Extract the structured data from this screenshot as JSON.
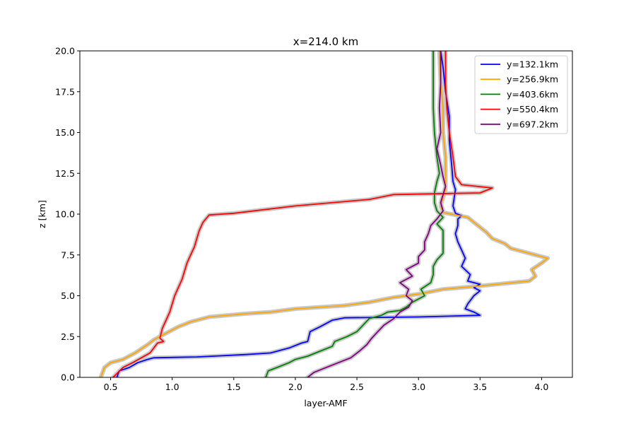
{
  "chart_data": {
    "type": "line",
    "title": "x=214.0 km",
    "xlabel": "layer-AMF",
    "ylabel": "z [km]",
    "xlim": [
      0.25,
      4.25
    ],
    "ylim": [
      0,
      20
    ],
    "xticks": [
      "0.5",
      "1.0",
      "1.5",
      "2.0",
      "2.5",
      "3.0",
      "3.5",
      "4.0"
    ],
    "yticks": [
      "0.0",
      "2.5",
      "5.0",
      "7.5",
      "10.0",
      "12.5",
      "15.0",
      "17.5",
      "20.0"
    ],
    "grid": false,
    "legend_position": "top-right",
    "band_color": "#c8c8c8",
    "series": [
      {
        "name": "y=132.1km",
        "color": "#0000ff",
        "points": [
          [
            0.55,
            0
          ],
          [
            0.57,
            0.4
          ],
          [
            0.65,
            0.6
          ],
          [
            0.72,
            0.9
          ],
          [
            0.8,
            1.1
          ],
          [
            0.85,
            1.2
          ],
          [
            1.2,
            1.25
          ],
          [
            1.6,
            1.4
          ],
          [
            1.8,
            1.5
          ],
          [
            1.95,
            1.8
          ],
          [
            2.05,
            2.1
          ],
          [
            2.1,
            2.2
          ],
          [
            2.12,
            2.8
          ],
          [
            2.2,
            3.1
          ],
          [
            2.25,
            3.3
          ],
          [
            2.3,
            3.5
          ],
          [
            2.4,
            3.65
          ],
          [
            3.0,
            3.7
          ],
          [
            3.5,
            3.8
          ],
          [
            3.45,
            4.0
          ],
          [
            3.38,
            4.2
          ],
          [
            3.4,
            4.5
          ],
          [
            3.45,
            5.0
          ],
          [
            3.5,
            5.3
          ],
          [
            3.45,
            5.5
          ],
          [
            3.5,
            5.7
          ],
          [
            3.4,
            5.9
          ],
          [
            3.42,
            6.3
          ],
          [
            3.35,
            6.8
          ],
          [
            3.38,
            7.3
          ],
          [
            3.35,
            7.8
          ],
          [
            3.32,
            8.3
          ],
          [
            3.3,
            8.8
          ],
          [
            3.32,
            9.3
          ],
          [
            3.32,
            9.7
          ],
          [
            3.35,
            9.9
          ],
          [
            3.3,
            10.05
          ],
          [
            3.28,
            10.5
          ],
          [
            3.3,
            11.5
          ],
          [
            3.28,
            12.0
          ],
          [
            3.27,
            13.0
          ],
          [
            3.25,
            14.5
          ],
          [
            3.25,
            16.0
          ],
          [
            3.22,
            17.5
          ],
          [
            3.2,
            19.0
          ],
          [
            3.18,
            20.0
          ]
        ]
      },
      {
        "name": "y=256.9km",
        "color": "#ffa500",
        "points": [
          [
            0.42,
            0
          ],
          [
            0.45,
            0.6
          ],
          [
            0.5,
            0.9
          ],
          [
            0.6,
            1.1
          ],
          [
            0.7,
            1.5
          ],
          [
            0.8,
            2.0
          ],
          [
            0.85,
            2.3
          ],
          [
            0.95,
            2.7
          ],
          [
            1.05,
            3.1
          ],
          [
            1.15,
            3.4
          ],
          [
            1.3,
            3.7
          ],
          [
            1.6,
            3.9
          ],
          [
            1.8,
            4.0
          ],
          [
            2.0,
            4.2
          ],
          [
            2.4,
            4.4
          ],
          [
            2.6,
            4.6
          ],
          [
            2.8,
            4.9
          ],
          [
            3.0,
            5.1
          ],
          [
            3.2,
            5.4
          ],
          [
            3.5,
            5.6
          ],
          [
            3.9,
            5.9
          ],
          [
            3.95,
            6.2
          ],
          [
            3.92,
            6.6
          ],
          [
            4.0,
            7.0
          ],
          [
            4.05,
            7.3
          ],
          [
            3.95,
            7.5
          ],
          [
            3.75,
            7.9
          ],
          [
            3.7,
            8.2
          ],
          [
            3.6,
            8.5
          ],
          [
            3.55,
            8.9
          ],
          [
            3.5,
            9.2
          ],
          [
            3.45,
            9.5
          ],
          [
            3.4,
            9.8
          ],
          [
            3.2,
            10.1
          ],
          [
            3.18,
            10.5
          ],
          [
            3.2,
            11.0
          ],
          [
            3.22,
            11.5
          ],
          [
            3.22,
            12.5
          ],
          [
            3.22,
            13.5
          ],
          [
            3.2,
            15.0
          ],
          [
            3.2,
            16.5
          ],
          [
            3.18,
            18.0
          ],
          [
            3.17,
            20.0
          ]
        ]
      },
      {
        "name": "y=403.6km",
        "color": "#008000",
        "points": [
          [
            1.76,
            0
          ],
          [
            1.78,
            0.4
          ],
          [
            1.85,
            0.6
          ],
          [
            1.95,
            0.9
          ],
          [
            2.0,
            1.1
          ],
          [
            2.1,
            1.3
          ],
          [
            2.2,
            1.6
          ],
          [
            2.3,
            1.9
          ],
          [
            2.32,
            2.2
          ],
          [
            2.42,
            2.5
          ],
          [
            2.5,
            2.8
          ],
          [
            2.55,
            3.2
          ],
          [
            2.6,
            3.6
          ],
          [
            2.7,
            3.8
          ],
          [
            2.75,
            4.0
          ],
          [
            2.85,
            4.1
          ],
          [
            2.9,
            4.3
          ],
          [
            2.95,
            4.6
          ],
          [
            3.05,
            5.0
          ],
          [
            3.02,
            5.4
          ],
          [
            3.1,
            5.8
          ],
          [
            3.12,
            6.3
          ],
          [
            3.12,
            6.8
          ],
          [
            3.15,
            7.2
          ],
          [
            3.2,
            7.6
          ],
          [
            3.2,
            8.0
          ],
          [
            3.2,
            8.6
          ],
          [
            3.2,
            9.0
          ],
          [
            3.15,
            9.4
          ],
          [
            3.2,
            9.8
          ],
          [
            3.15,
            10.2
          ],
          [
            3.13,
            10.7
          ],
          [
            3.13,
            11.3
          ],
          [
            3.15,
            12.0
          ],
          [
            3.17,
            12.5
          ],
          [
            3.15,
            13.5
          ],
          [
            3.13,
            15.0
          ],
          [
            3.12,
            16.5
          ],
          [
            3.12,
            18.5
          ],
          [
            3.12,
            20.0
          ]
        ]
      },
      {
        "name": "y=550.4km",
        "color": "#ff0000",
        "points": [
          [
            0.52,
            0
          ],
          [
            0.56,
            0.3
          ],
          [
            0.6,
            0.6
          ],
          [
            0.68,
            0.9
          ],
          [
            0.75,
            1.2
          ],
          [
            0.82,
            1.5
          ],
          [
            0.85,
            1.8
          ],
          [
            0.88,
            2.1
          ],
          [
            0.93,
            2.2
          ],
          [
            0.9,
            2.4
          ],
          [
            0.92,
            3.0
          ],
          [
            0.95,
            3.5
          ],
          [
            0.98,
            4.0
          ],
          [
            1.0,
            4.5
          ],
          [
            1.02,
            5.0
          ],
          [
            1.05,
            5.5
          ],
          [
            1.08,
            6.0
          ],
          [
            1.1,
            6.5
          ],
          [
            1.12,
            7.0
          ],
          [
            1.15,
            7.5
          ],
          [
            1.18,
            8.0
          ],
          [
            1.2,
            8.5
          ],
          [
            1.22,
            9.0
          ],
          [
            1.25,
            9.5
          ],
          [
            1.3,
            9.95
          ],
          [
            1.5,
            10.05
          ],
          [
            2.0,
            10.5
          ],
          [
            2.6,
            10.9
          ],
          [
            2.8,
            11.2
          ],
          [
            3.5,
            11.3
          ],
          [
            3.6,
            11.6
          ],
          [
            3.35,
            11.8
          ],
          [
            3.3,
            12.3
          ],
          [
            3.28,
            13.5
          ],
          [
            3.25,
            15.0
          ],
          [
            3.23,
            16.5
          ],
          [
            3.22,
            18.0
          ],
          [
            3.22,
            20.0
          ]
        ]
      },
      {
        "name": "y=697.2km",
        "color": "#800080",
        "points": [
          [
            2.1,
            0
          ],
          [
            2.15,
            0.3
          ],
          [
            2.25,
            0.6
          ],
          [
            2.35,
            0.9
          ],
          [
            2.45,
            1.2
          ],
          [
            2.52,
            1.6
          ],
          [
            2.58,
            2.0
          ],
          [
            2.62,
            2.4
          ],
          [
            2.67,
            2.8
          ],
          [
            2.72,
            3.2
          ],
          [
            2.8,
            3.6
          ],
          [
            2.85,
            4.0
          ],
          [
            2.92,
            4.3
          ],
          [
            2.95,
            4.7
          ],
          [
            2.9,
            5.0
          ],
          [
            2.92,
            5.4
          ],
          [
            2.85,
            5.8
          ],
          [
            2.95,
            6.2
          ],
          [
            2.9,
            6.6
          ],
          [
            3.0,
            7.0
          ],
          [
            3.0,
            7.4
          ],
          [
            3.05,
            7.8
          ],
          [
            3.05,
            8.3
          ],
          [
            3.08,
            8.8
          ],
          [
            3.1,
            9.3
          ],
          [
            3.15,
            9.7
          ],
          [
            3.2,
            10.2
          ],
          [
            3.18,
            10.7
          ],
          [
            3.2,
            11.2
          ],
          [
            3.22,
            11.7
          ],
          [
            3.2,
            12.3
          ],
          [
            3.18,
            13.0
          ],
          [
            3.15,
            14.0
          ],
          [
            3.18,
            15.0
          ],
          [
            3.17,
            16.5
          ],
          [
            3.18,
            18.0
          ],
          [
            3.18,
            20.0
          ]
        ]
      }
    ]
  }
}
